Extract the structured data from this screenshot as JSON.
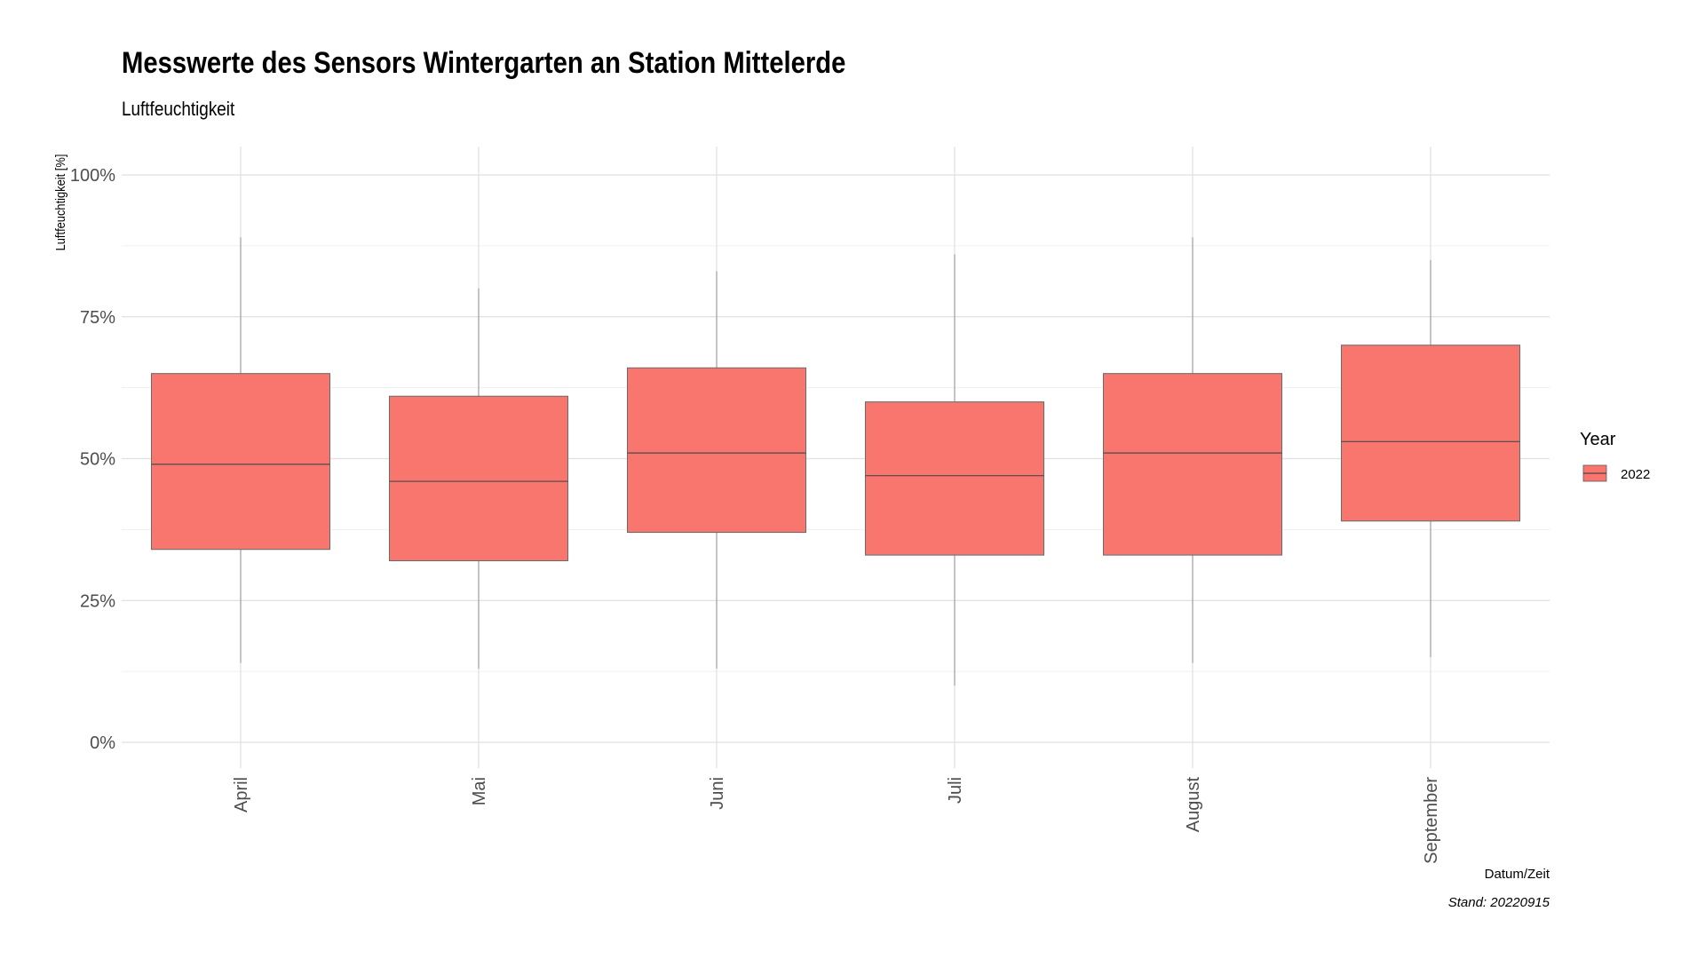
{
  "chart_data": {
    "type": "boxplot",
    "title": "Messwerte des Sensors Wintergarten an Station Mittelerde",
    "subtitle": "Luftfeuchtigkeit",
    "xlabel": "Datum/Zeit",
    "ylabel": "Luftfeuchtigkeit [%]",
    "ylim": [
      0,
      100
    ],
    "y_ticks": [
      "0%",
      "25%",
      "50%",
      "75%",
      "100%"
    ],
    "y_tick_values": [
      0,
      25,
      50,
      75,
      100
    ],
    "categories": [
      "April",
      "Mai",
      "Juni",
      "Juli",
      "August",
      "September"
    ],
    "series": [
      {
        "name": "2022",
        "color": "#F8766D",
        "boxes": [
          {
            "min": 14,
            "q1": 34,
            "median": 49,
            "q3": 65,
            "max": 89
          },
          {
            "min": 13,
            "q1": 32,
            "median": 46,
            "q3": 61,
            "max": 80
          },
          {
            "min": 13,
            "q1": 37,
            "median": 51,
            "q3": 66,
            "max": 83
          },
          {
            "min": 10,
            "q1": 33,
            "median": 47,
            "q3": 60,
            "max": 86
          },
          {
            "min": 14,
            "q1": 33,
            "median": 51,
            "q3": 65,
            "max": 89
          },
          {
            "min": 15,
            "q1": 39,
            "median": 53,
            "q3": 70,
            "max": 85
          }
        ]
      }
    ],
    "legend": {
      "title": "Year",
      "placement": "right"
    },
    "grid": true,
    "caption": "Stand: 20220915"
  }
}
